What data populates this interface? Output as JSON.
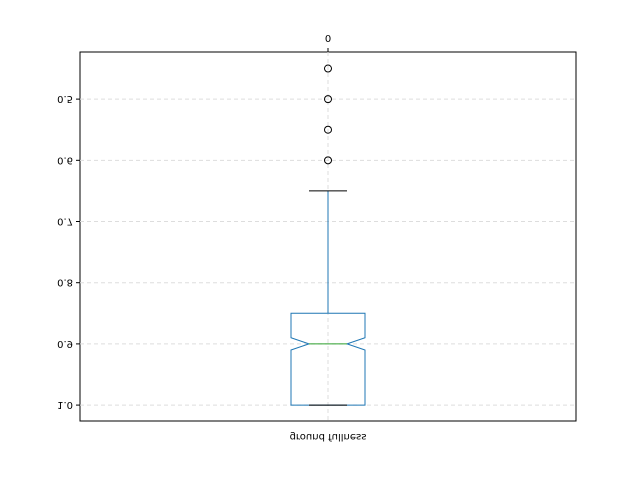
{
  "chart_data": {
    "type": "box",
    "title": "ground fullness",
    "categories": [
      "0"
    ],
    "boxes": [
      {
        "whislo": 0.65,
        "q1": 0.85,
        "notch_lo": 0.89,
        "med": 0.9,
        "notch_hi": 0.91,
        "q3": 1,
        "whishi": 1,
        "fliers": [
          0.6,
          0.55,
          0.5,
          0.45
        ]
      }
    ],
    "color": "#1f77b4",
    "median_color": "#2ca02c",
    "ylim": [
      0.423,
      1.026
    ],
    "inverted": true,
    "yticks": [
      0.5,
      0.6,
      0.7,
      0.8,
      0.9,
      {
        "value": 1,
        "label": "1.0"
      }
    ],
    "grid": true
  }
}
